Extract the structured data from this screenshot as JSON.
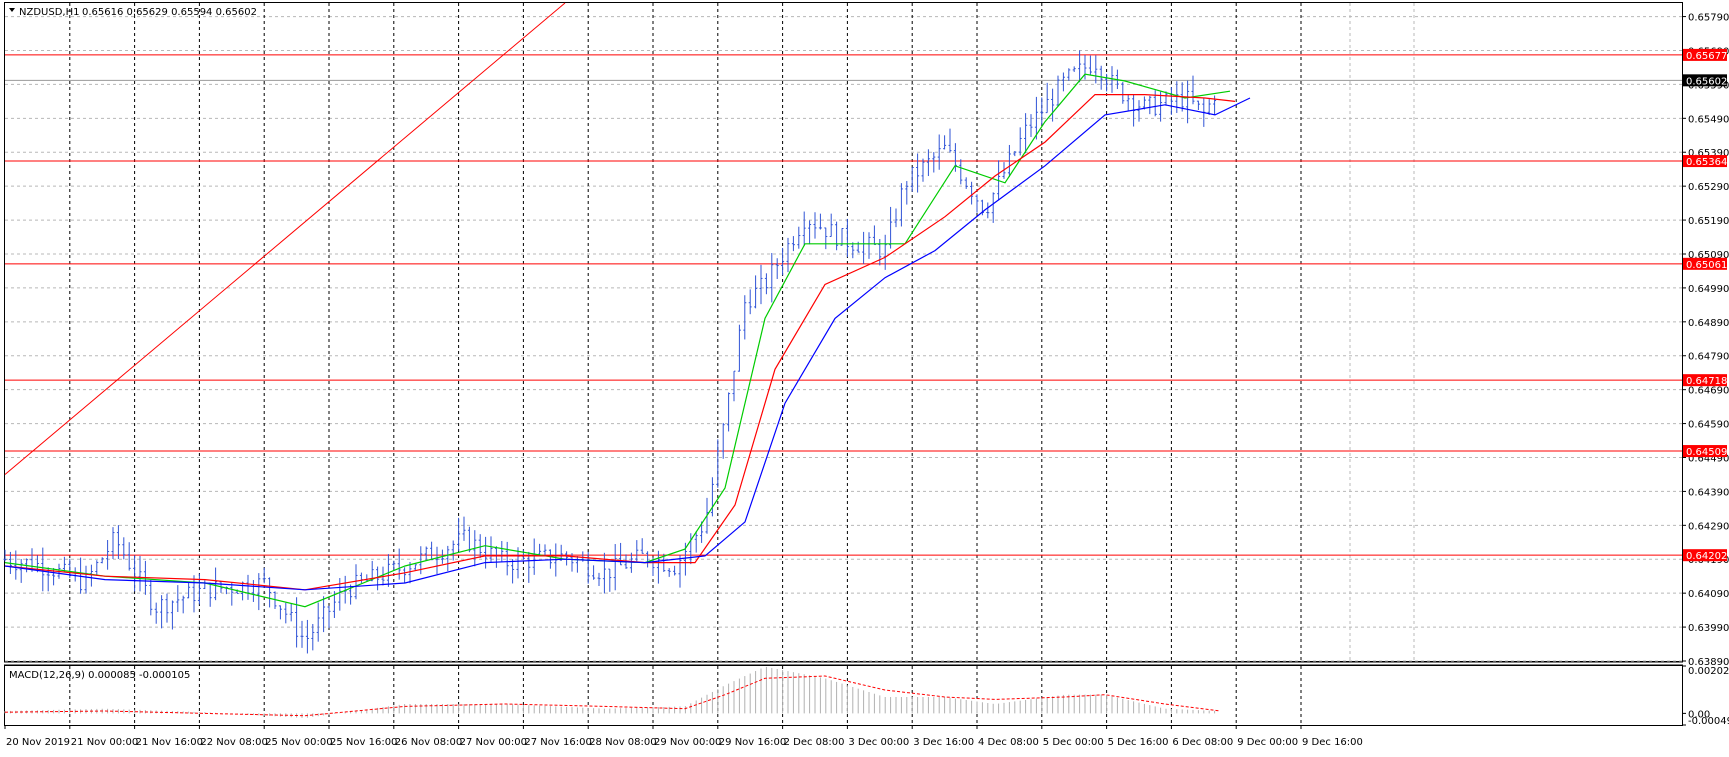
{
  "header": {
    "symbol": "NZDUSD,H1",
    "ohlc": "0.65616 0.65629 0.65594 0.65602",
    "menu_icon": "triangle-down-icon"
  },
  "macd": {
    "label": "MACD(12,26,9) 0.000085 -0.000105",
    "ticks": [
      "0.002027",
      "0.00",
      "-0.000497"
    ]
  },
  "levels": {
    "current": "0.65602",
    "red_lines": [
      "0.65677",
      "0.65364",
      "0.65061",
      "0.64718",
      "0.64509",
      "0.64202"
    ]
  },
  "colors": {
    "candles": "#2f53d6",
    "ma_fast": "#00cc00",
    "ma_mid": "#ff0000",
    "ma_slow": "#0000ff",
    "levels": "#ff0000",
    "macd_hist": "#b0b0b0",
    "macd_signal": "#ff0000"
  },
  "chart_data": [
    {
      "type": "candlestick",
      "title": "NZDUSD,H1",
      "x_ticks": [
        "20 Nov 2019",
        "21 Nov 00:00",
        "21 Nov 16:00",
        "22 Nov 08:00",
        "25 Nov 00:00",
        "25 Nov 16:00",
        "26 Nov 08:00",
        "27 Nov 00:00",
        "27 Nov 16:00",
        "28 Nov 08:00",
        "29 Nov 00:00",
        "29 Nov 16:00",
        "2 Dec 08:00",
        "3 Dec 00:00",
        "3 Dec 16:00",
        "4 Dec 08:00",
        "5 Dec 00:00",
        "5 Dec 16:00",
        "6 Dec 08:00",
        "9 Dec 00:00",
        "9 Dec 16:00"
      ],
      "y_ticks": [
        "0.65790",
        "0.65690",
        "0.65590",
        "0.65490",
        "0.65390",
        "0.65290",
        "0.65190",
        "0.65090",
        "0.64990",
        "0.64890",
        "0.64790",
        "0.64690",
        "0.64590",
        "0.64490",
        "0.64390",
        "0.64290",
        "0.64190",
        "0.64090",
        "0.63990",
        "0.63890"
      ],
      "ylim": [
        0.6389,
        0.6583
      ],
      "approx_close_path": [
        [
          0,
          0.6419
        ],
        [
          40,
          0.6417
        ],
        [
          80,
          0.6412
        ],
        [
          110,
          0.6425
        ],
        [
          150,
          0.6405
        ],
        [
          200,
          0.641
        ],
        [
          260,
          0.6412
        ],
        [
          300,
          0.6395
        ],
        [
          340,
          0.641
        ],
        [
          400,
          0.6417
        ],
        [
          460,
          0.6425
        ],
        [
          500,
          0.6418
        ],
        [
          560,
          0.642
        ],
        [
          600,
          0.6415
        ],
        [
          640,
          0.642
        ],
        [
          670,
          0.6417
        ],
        [
          700,
          0.643
        ],
        [
          720,
          0.646
        ],
        [
          740,
          0.6495
        ],
        [
          760,
          0.65
        ],
        [
          800,
          0.652
        ],
        [
          840,
          0.6513
        ],
        [
          880,
          0.651
        ],
        [
          900,
          0.653
        ],
        [
          940,
          0.654
        ],
        [
          980,
          0.6522
        ],
        [
          1020,
          0.6545
        ],
        [
          1060,
          0.656
        ],
        [
          1090,
          0.6566
        ],
        [
          1110,
          0.6558
        ],
        [
          1140,
          0.6552
        ],
        [
          1180,
          0.6555
        ],
        [
          1200,
          0.655
        ],
        [
          1215,
          0.656
        ]
      ],
      "moving_averages": [
        {
          "color": "green",
          "points": [
            [
              0,
              0.6418
            ],
            [
              100,
              0.6414
            ],
            [
              200,
              0.6412
            ],
            [
              300,
              0.6405
            ],
            [
              400,
              0.6417
            ],
            [
              480,
              0.6423
            ],
            [
              560,
              0.6419
            ],
            [
              640,
              0.6418
            ],
            [
              680,
              0.6422
            ],
            [
              720,
              0.644
            ],
            [
              760,
              0.649
            ],
            [
              800,
              0.6512
            ],
            [
              850,
              0.6512
            ],
            [
              900,
              0.6512
            ],
            [
              950,
              0.6535
            ],
            [
              1000,
              0.653
            ],
            [
              1040,
              0.6548
            ],
            [
              1080,
              0.6562
            ],
            [
              1120,
              0.656
            ],
            [
              1180,
              0.6555
            ],
            [
              1225,
              0.6557
            ]
          ]
        },
        {
          "color": "red",
          "points": [
            [
              0,
              0.6417
            ],
            [
              100,
              0.6414
            ],
            [
              200,
              0.6413
            ],
            [
              300,
              0.641
            ],
            [
              400,
              0.6415
            ],
            [
              480,
              0.642
            ],
            [
              560,
              0.642
            ],
            [
              640,
              0.6418
            ],
            [
              690,
              0.6418
            ],
            [
              730,
              0.6435
            ],
            [
              770,
              0.6475
            ],
            [
              820,
              0.65
            ],
            [
              880,
              0.6508
            ],
            [
              940,
              0.652
            ],
            [
              990,
              0.6532
            ],
            [
              1040,
              0.6542
            ],
            [
              1090,
              0.6556
            ],
            [
              1140,
              0.6556
            ],
            [
              1200,
              0.6555
            ],
            [
              1230,
              0.6554
            ]
          ]
        },
        {
          "color": "blue",
          "points": [
            [
              0,
              0.6417
            ],
            [
              100,
              0.6413
            ],
            [
              200,
              0.6412
            ],
            [
              300,
              0.641
            ],
            [
              400,
              0.6412
            ],
            [
              480,
              0.6418
            ],
            [
              560,
              0.6419
            ],
            [
              640,
              0.6418
            ],
            [
              700,
              0.642
            ],
            [
              740,
              0.643
            ],
            [
              780,
              0.6465
            ],
            [
              830,
              0.649
            ],
            [
              880,
              0.6502
            ],
            [
              930,
              0.651
            ],
            [
              980,
              0.6522
            ],
            [
              1040,
              0.6535
            ],
            [
              1100,
              0.655
            ],
            [
              1160,
              0.6553
            ],
            [
              1210,
              0.655
            ],
            [
              1245,
              0.6555
            ]
          ]
        }
      ],
      "trend_line": {
        "color": "red",
        "from": [
          0,
          0.6444
        ],
        "to": [
          560,
          0.6583
        ]
      }
    },
    {
      "type": "area",
      "title": "MACD(12,26,9) 0.000085 -0.000105",
      "series": [
        {
          "name": "histogram",
          "points": [
            [
              0,
              0.0001
            ],
            [
              100,
              0.0002
            ],
            [
              200,
              5e-05
            ],
            [
              300,
              -0.0002
            ],
            [
              400,
              0.0004
            ],
            [
              500,
              0.0004
            ],
            [
              600,
              0.0002
            ],
            [
              680,
              0.0003
            ],
            [
              720,
              0.0012
            ],
            [
              760,
              0.002
            ],
            [
              820,
              0.0015
            ],
            [
              880,
              0.0007
            ],
            [
              940,
              0.0007
            ],
            [
              990,
              0.0004
            ],
            [
              1060,
              0.0008
            ],
            [
              1100,
              0.0008
            ],
            [
              1160,
              0.0002
            ],
            [
              1215,
              0.0001
            ]
          ]
        },
        {
          "name": "signal",
          "points": [
            [
              0,
              5e-05
            ],
            [
              100,
              0.0001
            ],
            [
              200,
              0.0
            ],
            [
              300,
              -0.0001
            ],
            [
              400,
              0.0003
            ],
            [
              500,
              0.0004
            ],
            [
              600,
              0.0003
            ],
            [
              680,
              0.0002
            ],
            [
              720,
              0.0008
            ],
            [
              760,
              0.0015
            ],
            [
              820,
              0.0016
            ],
            [
              880,
              0.001
            ],
            [
              940,
              0.0007
            ],
            [
              990,
              0.0006
            ],
            [
              1060,
              0.0007
            ],
            [
              1100,
              0.0008
            ],
            [
              1160,
              0.0004
            ],
            [
              1215,
              0.0001
            ]
          ]
        }
      ],
      "ylim": [
        -0.000497,
        0.002027
      ]
    }
  ]
}
